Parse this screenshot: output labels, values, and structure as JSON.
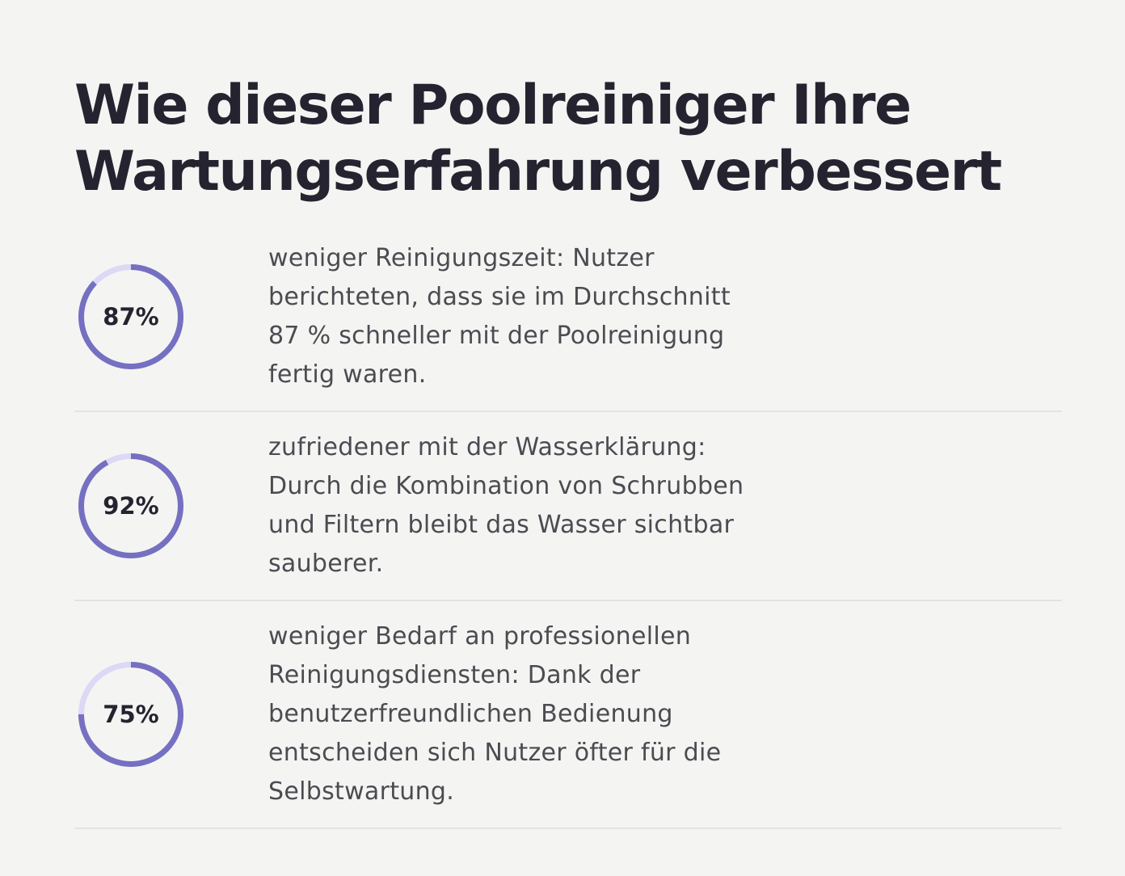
{
  "title": "Wie dieser Poolreiniger Ihre Wartungserfahrung verbessert",
  "stats": [
    {
      "percent_label": "87%",
      "percent_value": 87,
      "text": "weniger Reinigungszeit: Nutzer berichteten, dass sie im Durchschnitt 87 % schneller mit der Poolreinigung fertig waren."
    },
    {
      "percent_label": "92%",
      "percent_value": 92,
      "text": "zufriedener mit der Wasserklärung: Durch die Kombination von Schrubben und Filtern bleibt das Wasser sichtbar sauberer."
    },
    {
      "percent_label": "75%",
      "percent_value": 75,
      "text": "weniger Bedarf an professionellen Reinigungsdiensten: Dank der benutzerfreundlichen Bedienung entscheiden sich Nutzer öfter für die Selbstwartung."
    }
  ],
  "colors": {
    "ring_fill": "#7570c1",
    "ring_track": "#dcd8f5",
    "heading": "#25232f",
    "body_text": "#4b4b52",
    "background": "#f4f4f2"
  }
}
